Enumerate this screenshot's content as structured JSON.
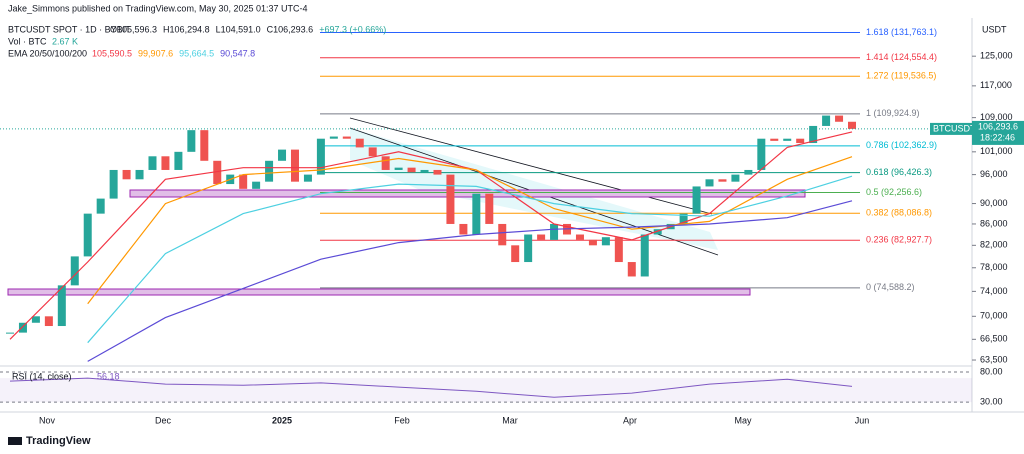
{
  "chart_data": {
    "type": "candlestick",
    "published": "Jake_Simmons published on TradingView.com, May 30, 2025 01:37 UTC-4",
    "symbol": "BTCUSDT SPOT · 1D · BYBIT",
    "ohlc_text": [
      "O105,596.3",
      "H106,294.8",
      "L104,591.0",
      "C106,293.6",
      "+697.3 (+0.66%)"
    ],
    "volume_text": [
      "Vol · BTC",
      "2.67 K"
    ],
    "ema_text": "EMA 20/50/100/200",
    "currency": "USDT",
    "log_scale": true,
    "up_color": "#26a69a",
    "down_color": "#ef5350",
    "closes": [
      67500,
      69000,
      70000,
      68500,
      75000,
      80000,
      88000,
      91000,
      97000,
      95000,
      97000,
      100000,
      97000,
      101000,
      106000,
      99000,
      94000,
      96000,
      93000,
      94500,
      99000,
      101500,
      94500,
      96000,
      104000,
      104500,
      104000,
      102000,
      100000,
      97000,
      97500,
      96500,
      97000,
      96000,
      86000,
      84000,
      92000,
      86000,
      82000,
      79000,
      84000,
      83000,
      86000,
      84000,
      83000,
      82000,
      83500,
      79000,
      76500,
      84000,
      85000,
      86000,
      88000,
      93500,
      95000,
      94500,
      96000,
      97000,
      104000,
      103500,
      104000,
      103000,
      107000,
      109500,
      108000,
      106293.6
    ],
    "ema_x": [
      0,
      6,
      12,
      18,
      24,
      30,
      36,
      42,
      48,
      54,
      60,
      65
    ],
    "series": [
      {
        "name": "105,590.5",
        "color": "#f23645",
        "values": [
          66500,
          79000,
          95000,
          97500,
          97500,
          101000,
          97000,
          86000,
          83000,
          88000,
          102000,
          105590.5
        ]
      },
      {
        "name": "99,907.6",
        "color": "#ff9800",
        "values": [
          null,
          72000,
          90000,
          96000,
          97000,
          99500,
          97000,
          89000,
          85000,
          86500,
          95000,
          99907.6
        ]
      },
      {
        "name": "95,664.5",
        "color": "#4dd0e1",
        "values": [
          null,
          66000,
          80500,
          88000,
          92000,
          94000,
          93500,
          90000,
          88000,
          87500,
          91500,
          95664.5
        ]
      },
      {
        "name": "90,547.8",
        "color": "#5b4bd6",
        "values": [
          null,
          63300,
          69800,
          74500,
          79500,
          82500,
          84000,
          85000,
          85400,
          86000,
          87200,
          90547.8
        ]
      }
    ],
    "fib_levels": [
      {
        "label": "1.618 (131,763.1)",
        "value": 131763.1,
        "color": "#2962ff"
      },
      {
        "label": "1.414 (124,554.4)",
        "value": 124554.4,
        "color": "#f23645"
      },
      {
        "label": "1.272 (119,536.5)",
        "value": 119536.5,
        "color": "#ff9800"
      },
      {
        "label": "1 (109,924.9)",
        "value": 109924.9,
        "color": "#787b86"
      },
      {
        "label": "0.786 (102,362.9)",
        "value": 102362.9,
        "color": "#00bcd4"
      },
      {
        "label": "0.618 (96,426.3)",
        "value": 96426.3,
        "color": "#089981"
      },
      {
        "label": "0.5 (92,256.6)",
        "value": 92256.6,
        "color": "#4caf50"
      },
      {
        "label": "0.382 (88,086.8)",
        "value": 88086.8,
        "color": "#ff9800"
      },
      {
        "label": "0.236 (82,927.7)",
        "value": 82927.7,
        "color": "#f23645"
      },
      {
        "label": "0 (74,588.2)",
        "value": 74588.2,
        "color": "#787b86"
      }
    ],
    "ylim": [
      62800,
      135500
    ],
    "yticks": [
      {
        "value": 125000,
        "label": "125,000"
      },
      {
        "value": 117000,
        "label": "117,000"
      },
      {
        "value": 109000,
        "label": "109,000"
      },
      {
        "value": 101000,
        "label": "101,000"
      },
      {
        "value": 96000,
        "label": "96,000"
      },
      {
        "value": 90000,
        "label": "90,000"
      },
      {
        "value": 86000,
        "label": "86,000"
      },
      {
        "value": 82000,
        "label": "82,000"
      },
      {
        "value": 78000,
        "label": "78,000"
      },
      {
        "value": 74000,
        "label": "74,000"
      },
      {
        "value": 70000,
        "label": "70,000"
      },
      {
        "value": 66500,
        "label": "66,500"
      },
      {
        "value": 63500,
        "label": "63,500"
      }
    ],
    "price_label": {
      "symbol": "BTCUSDT",
      "price": {
        "value": 106293.6,
        "label": "106,293.6"
      },
      "countdown": "18:22:46"
    },
    "time_labels": [
      "Nov",
      "Dec",
      "2025",
      "Feb",
      "Mar",
      "Apr",
      "May",
      "Jun"
    ],
    "rsi": {
      "label": "RSI (14, close)",
      "last": "56.18",
      "color": "#7e57c2",
      "values": [
        65,
        70,
        60,
        58,
        62,
        55,
        48,
        38,
        45,
        60,
        68,
        56.18
      ],
      "ylim": [
        17,
        90
      ],
      "yticks": [
        {
          "value": 80,
          "label": "80.00"
        },
        {
          "value": 30,
          "label": "30.00"
        }
      ]
    },
    "brand": "TradingView"
  }
}
